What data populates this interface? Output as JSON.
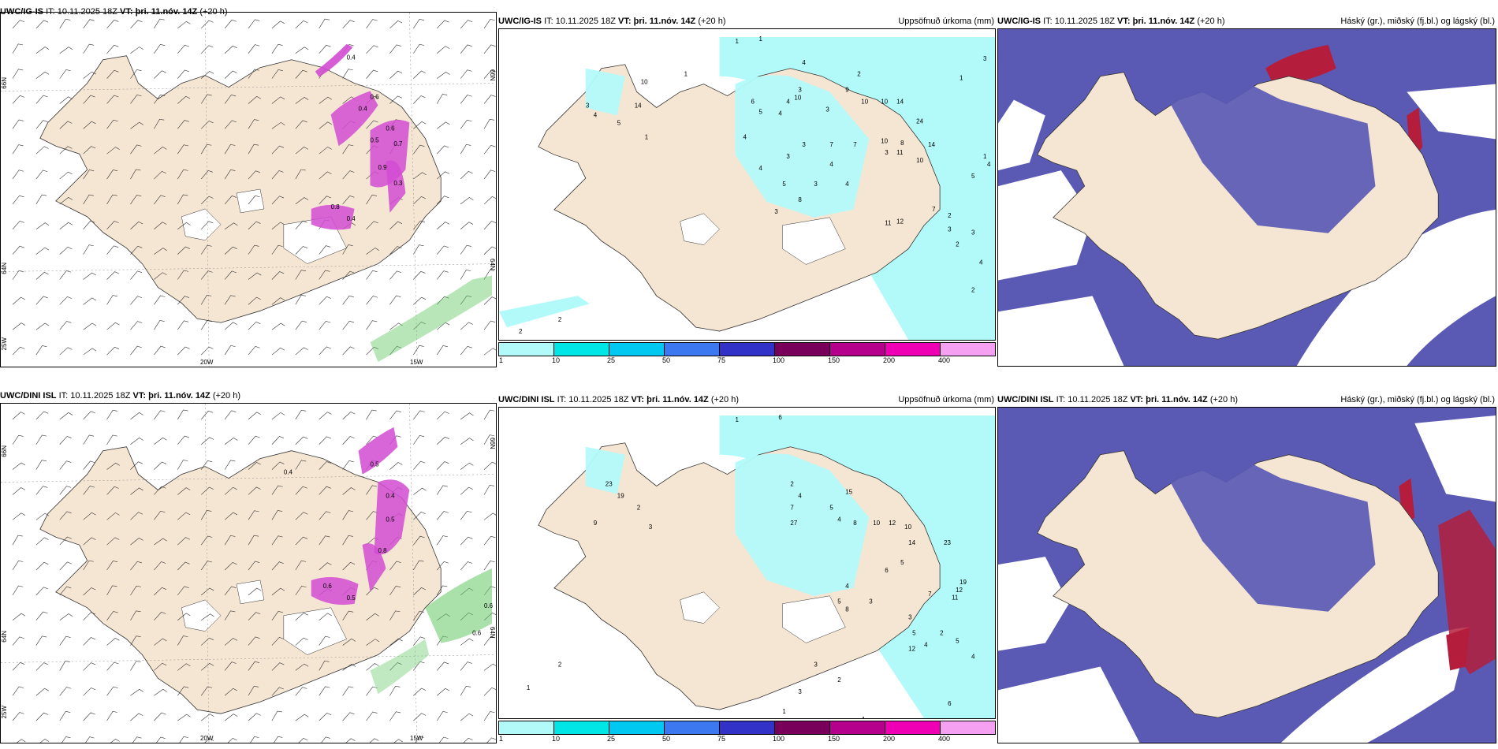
{
  "colors": {
    "land": "#f5e6d3",
    "sea": "#ffffff",
    "precip1": "#b2fafa",
    "precip10": "#00e6e6",
    "precip25": "#00c8f0",
    "precip50": "#3c78f0",
    "precip75": "#3232c8",
    "precip100": "#78005a",
    "precip150": "#b4008c",
    "precip200": "#f000b4",
    "precip400": "#f5a0f0",
    "cloudHigh": "#5a5ab4",
    "cloudLow": "#3c8cf0",
    "cloudMid": "#8cb4f0",
    "cloudRed": "#b41e3c",
    "snow": "#d24bd2",
    "rain": "#64c864"
  },
  "panels": [
    {
      "model": "UWC/IG-IS",
      "it": "IT: 10.11.2025 18Z",
      "vt_label": "VT:",
      "vt": "þri. 11.nóv. 14Z",
      "lead": "(+20 h)",
      "right": ""
    },
    {
      "model": "UWC/IG-IS",
      "it": "IT: 10.11.2025 18Z",
      "vt_label": "VT:",
      "vt": "þri. 11.nóv. 14Z",
      "lead": "(+20 h)",
      "right": "Uppsöfnuð úrkoma (mm)"
    },
    {
      "model": "UWC/IG-IS",
      "it": "IT: 10.11.2025 18Z",
      "vt_label": "VT:",
      "vt": "þri. 11.nóv. 14Z",
      "lead": "(+20 h)",
      "right": "Háský (gr.), miðský (fj.bl.) og lágský (bl.)"
    },
    {
      "model": "UWC/DINI ISL",
      "it": "IT: 10.11.2025 18Z",
      "vt_label": "VT:",
      "vt": "þri. 11.nóv. 14Z",
      "lead": "(+20 h)",
      "right": ""
    },
    {
      "model": "UWC/DINI ISL",
      "it": "IT: 10.11.2025 18Z",
      "vt_label": "VT:",
      "vt": "þri. 11.nóv. 14Z",
      "lead": "(+20 h)",
      "right": "Uppsöfnuð úrkoma (mm)"
    },
    {
      "model": "UWC/DINI ISL",
      "it": "IT: 10.11.2025 18Z",
      "vt_label": "VT:",
      "vt": "þri. 11.nóv. 14Z",
      "lead": "(+20 h)",
      "right": "Háský (gr.), miðský (fj.bl.) og lágský (bl.)"
    }
  ],
  "grid": {
    "lat66": "66N",
    "lat64": "64N",
    "lon25": "25W",
    "lon20": "20W",
    "lon15": "15W"
  },
  "colorbar": {
    "labels": [
      "1",
      "10",
      "25",
      "50",
      "75",
      "100",
      "150",
      "200",
      "400"
    ]
  },
  "precip_top": [
    "2",
    "2",
    "1",
    "1",
    "1",
    "4",
    "2",
    "1",
    "3",
    "10",
    "14",
    "3",
    "4",
    "5",
    "1",
    "6",
    "5",
    "4",
    "4",
    "10",
    "3",
    "9",
    "10",
    "10",
    "14",
    "24",
    "8",
    "3",
    "7",
    "10",
    "11",
    "14",
    "10",
    "1",
    "5",
    "4",
    "3",
    "3",
    "7",
    "4",
    "4",
    "3",
    "8",
    "3",
    "11",
    "12",
    "7",
    "2",
    "3",
    "2",
    "3",
    "4",
    "2",
    "5",
    "2",
    "3",
    "4",
    "4",
    "5"
  ],
  "precip_bot": [
    "2",
    "1",
    "1",
    "6",
    "23",
    "19",
    "2",
    "9",
    "3",
    "2",
    "4",
    "7",
    "27",
    "15",
    "5",
    "4",
    "8",
    "10",
    "12",
    "10",
    "14",
    "23",
    "5",
    "6",
    "4",
    "5",
    "8",
    "3",
    "19",
    "12",
    "11",
    "7",
    "3",
    "5",
    "4",
    "2",
    "5",
    "4",
    "12",
    "2",
    "3",
    "6",
    "4",
    "1",
    "2",
    "1",
    "3"
  ],
  "wind_labels_top": [
    "0.4",
    "0.6",
    "0.4",
    "0.6",
    "0.5",
    "0.7",
    "0.9",
    "0.3",
    "0.8",
    "0.4"
  ],
  "wind_labels_bot": [
    "0.4",
    "0.5",
    "0.4",
    "0.5",
    "0.8",
    "0.6",
    "0.5",
    "0.6",
    "0.6"
  ]
}
